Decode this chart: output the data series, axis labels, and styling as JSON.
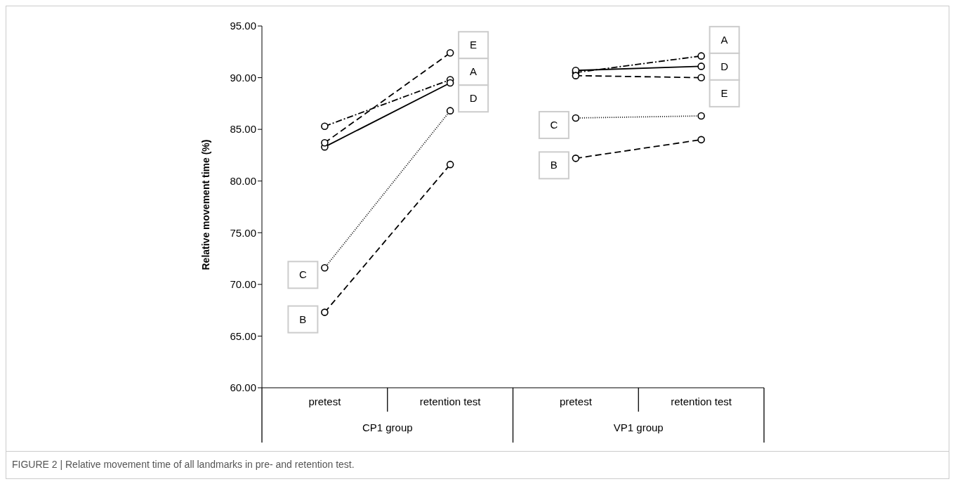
{
  "chart_data": {
    "type": "line",
    "ylabel": "Relative movement time (%)",
    "categories": [
      "pretest",
      "retention test",
      "pretest",
      "retention test"
    ],
    "series": [
      {
        "name": "A",
        "color": "#000000",
        "line_style": "dashdot",
        "values": [
          85.3,
          89.8,
          90.5,
          92.1
        ]
      },
      {
        "name": "B",
        "color": "#000000",
        "line_style": "dashed",
        "values": [
          67.3,
          81.6,
          82.2,
          84.0
        ]
      },
      {
        "name": "C",
        "color": "#000000",
        "line_style": "dotted",
        "values": [
          71.6,
          86.8,
          86.1,
          86.3
        ]
      },
      {
        "name": "D",
        "color": "#000000",
        "line_style": "solid",
        "values": [
          83.3,
          89.5,
          90.7,
          91.1
        ]
      },
      {
        "name": "E",
        "color": "#000000",
        "line_style": "dashed",
        "values": [
          83.7,
          92.4,
          90.2,
          90.0
        ]
      }
    ],
    "ylim": [
      60,
      95
    ],
    "yticks": [
      {
        "value": 60,
        "label": "60.00"
      },
      {
        "value": 65,
        "label": "65.00"
      },
      {
        "value": 70,
        "label": "70.00"
      },
      {
        "value": 75,
        "label": "75.00"
      },
      {
        "value": 80,
        "label": "80.00"
      },
      {
        "value": 85,
        "label": "85.00"
      },
      {
        "value": 90,
        "label": "90.00"
      },
      {
        "value": 95,
        "label": "95.00"
      }
    ],
    "marker": "circle",
    "grid": false,
    "legend": false,
    "annotations": [
      "CP1 group",
      "VP1 group",
      "FIGURE 2 | Relative movement time of all landmarks in pre- and retention test."
    ]
  }
}
